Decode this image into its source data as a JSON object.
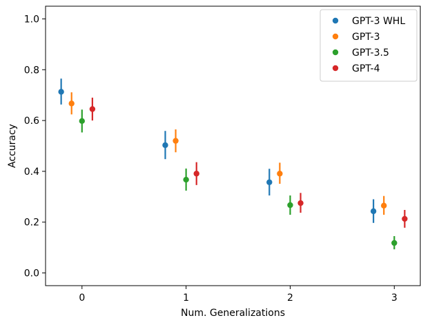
{
  "chart_data": {
    "type": "scatter",
    "xlabel": "Num. Generalizations",
    "ylabel": "Accuracy",
    "categories": [
      0,
      1,
      2,
      3
    ],
    "xlim": [
      -0.35,
      3.25
    ],
    "ylim": [
      -0.05,
      1.05
    ],
    "xticks": [
      "0",
      "1",
      "2",
      "3"
    ],
    "yticks": [
      "0.0",
      "0.2",
      "0.4",
      "0.6",
      "0.8",
      "1.0"
    ],
    "grid": false,
    "legend_position": "top-right",
    "series": [
      {
        "name": "GPT-3 WHL",
        "color": "#1f77b4",
        "offset": -0.2,
        "values": [
          0.713,
          0.503,
          0.357,
          0.243
        ],
        "err_low": [
          0.663,
          0.448,
          0.305,
          0.197
        ],
        "err_high": [
          0.765,
          0.559,
          0.41,
          0.29
        ]
      },
      {
        "name": "GPT-3",
        "color": "#ff7f0e",
        "offset": -0.1,
        "values": [
          0.667,
          0.52,
          0.391,
          0.265
        ],
        "err_low": [
          0.624,
          0.475,
          0.351,
          0.229
        ],
        "err_high": [
          0.711,
          0.565,
          0.434,
          0.303
        ]
      },
      {
        "name": "GPT-3.5",
        "color": "#2ca02c",
        "offset": 0.0,
        "values": [
          0.598,
          0.367,
          0.267,
          0.118
        ],
        "err_low": [
          0.553,
          0.324,
          0.229,
          0.093
        ],
        "err_high": [
          0.643,
          0.411,
          0.305,
          0.145
        ]
      },
      {
        "name": "GPT-4",
        "color": "#d62728",
        "offset": 0.1,
        "values": [
          0.645,
          0.391,
          0.275,
          0.213
        ],
        "err_low": [
          0.6,
          0.346,
          0.237,
          0.178
        ],
        "err_high": [
          0.69,
          0.436,
          0.315,
          0.248
        ]
      }
    ]
  }
}
